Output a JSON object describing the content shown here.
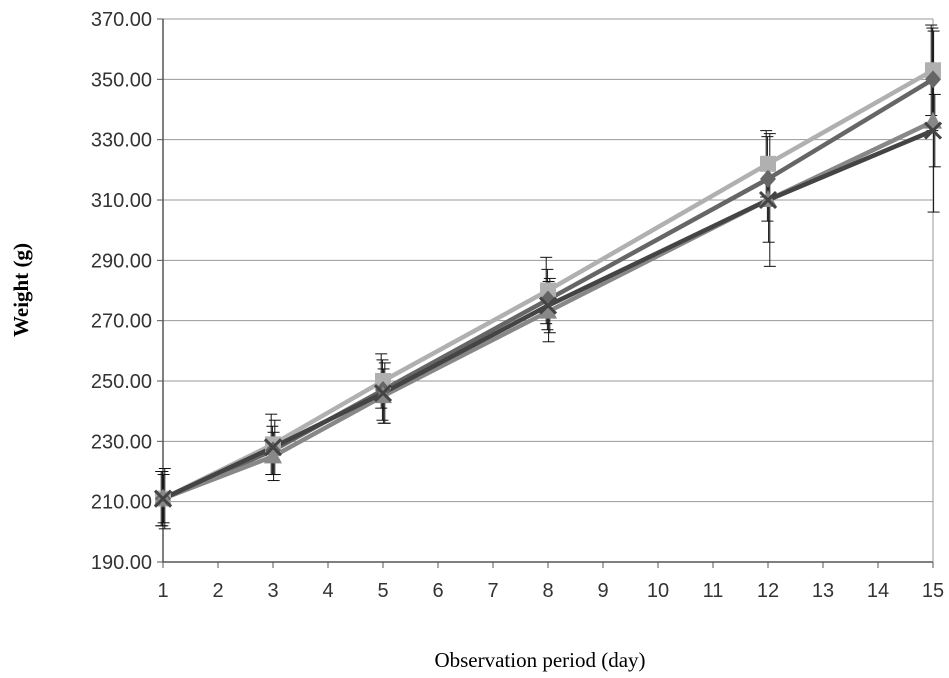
{
  "chart_data": {
    "type": "line",
    "title": "",
    "xlabel": "Observation period (day)",
    "ylabel": "Weight (g)",
    "xlim": [
      1,
      15
    ],
    "ylim": [
      190,
      370
    ],
    "x_ticks": [
      1,
      2,
      3,
      4,
      5,
      6,
      7,
      8,
      9,
      10,
      11,
      12,
      13,
      14,
      15
    ],
    "x_tick_labels": [
      "1",
      "2",
      "3",
      "4",
      "5",
      "6",
      "7",
      "8",
      "9",
      "10",
      "11",
      "12",
      "13",
      "14",
      "15"
    ],
    "y_ticks": [
      190,
      210,
      230,
      250,
      270,
      290,
      310,
      330,
      350,
      370
    ],
    "y_tick_labels": [
      "190.00",
      "210.00",
      "230.00",
      "250.00",
      "270.00",
      "290.00",
      "310.00",
      "330.00",
      "350.00",
      "370.00"
    ],
    "grid": "horizontal",
    "legend": "none",
    "x": [
      1,
      3,
      5,
      8,
      12,
      15
    ],
    "series": [
      {
        "marker": "square",
        "color": "#b0b0b0",
        "values": [
          211,
          229,
          250,
          280,
          322,
          353
        ],
        "error": [
          9,
          10,
          9,
          11,
          11,
          15
        ]
      },
      {
        "marker": "diamond",
        "color": "#666666",
        "values": [
          211,
          227,
          247,
          277,
          317,
          350
        ],
        "error": [
          9,
          8,
          10,
          10,
          14,
          17
        ]
      },
      {
        "marker": "triangle",
        "color": "#888888",
        "values": [
          211,
          225,
          245,
          273,
          310,
          336
        ],
        "error": [
          8,
          8,
          9,
          10,
          14,
          30
        ]
      },
      {
        "marker": "x",
        "color": "#444444",
        "values": [
          211,
          228,
          246,
          275,
          310,
          333
        ],
        "error": [
          10,
          9,
          10,
          9,
          22,
          12
        ]
      }
    ]
  }
}
